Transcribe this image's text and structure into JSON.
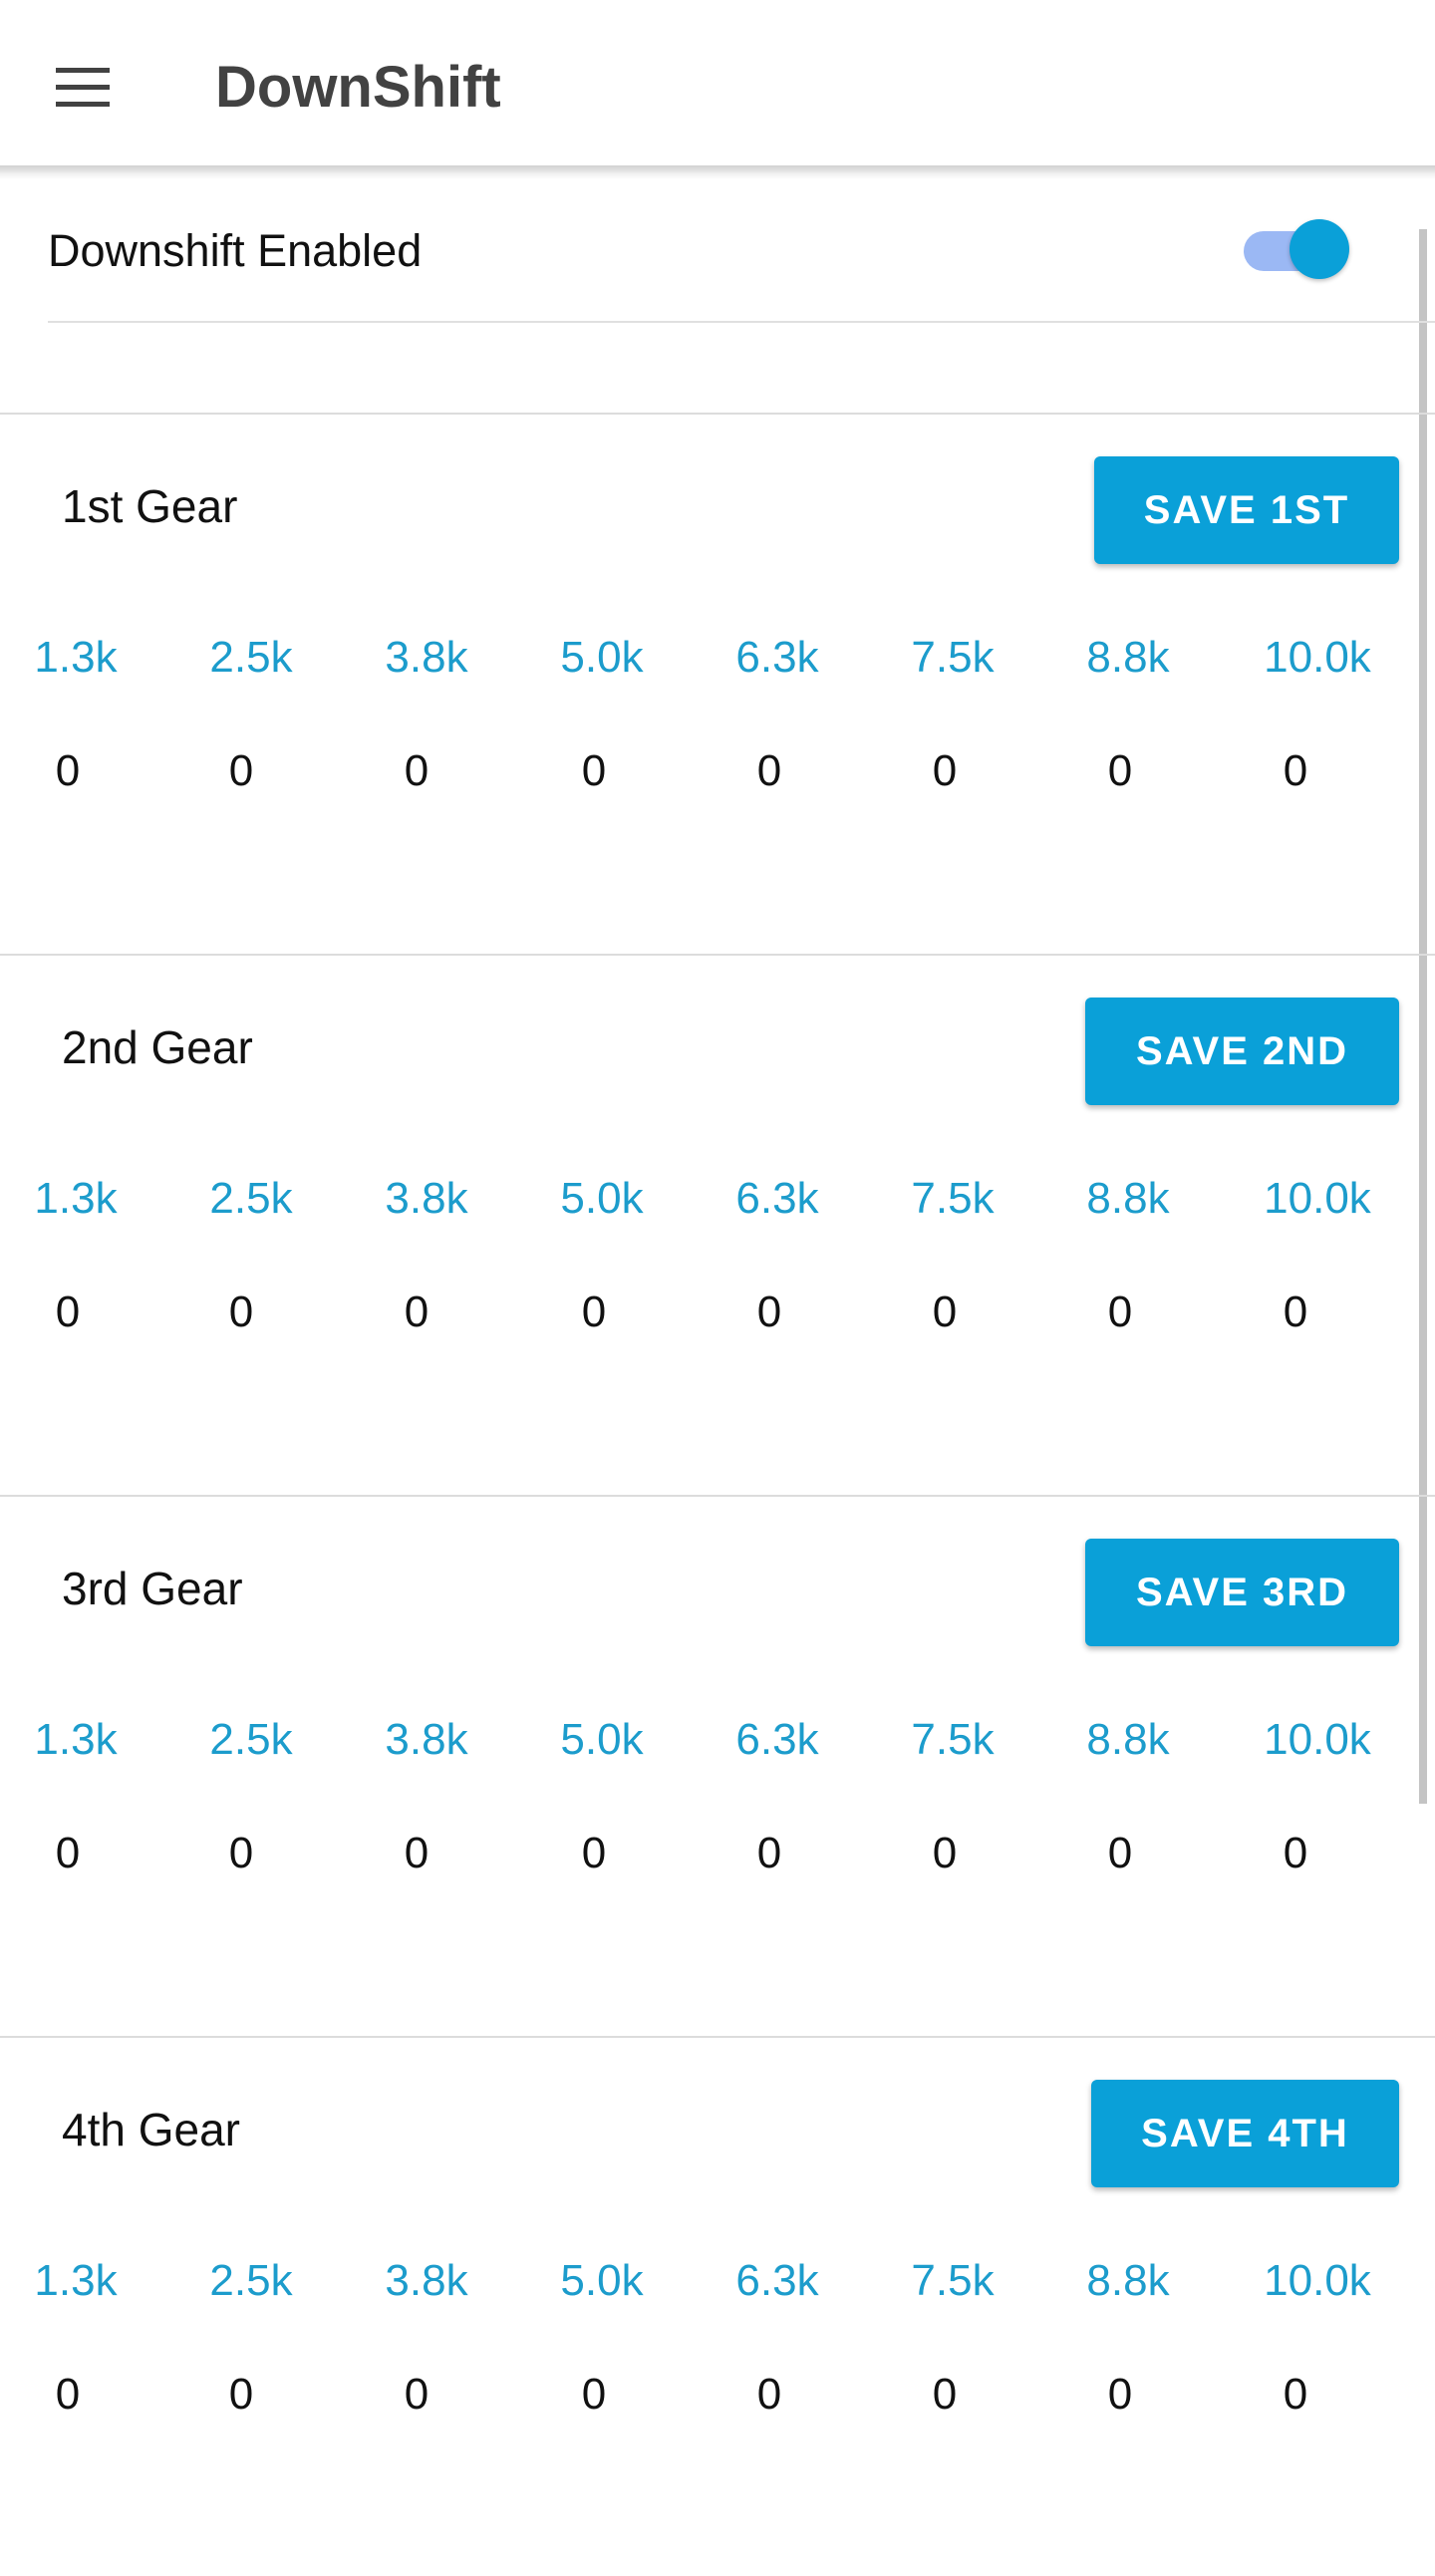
{
  "appbar": {
    "menu_icon": "hamburger-menu-icon",
    "title": "DownShift"
  },
  "settings": {
    "downshift_label": "Downshift Enabled",
    "downshift_enabled": true,
    "switch_colors": {
      "track": "#9bb8f4",
      "knob": "#0aa0d8"
    }
  },
  "colors": {
    "accent": "#0aa0d8",
    "rpm_text": "#1c9ccc",
    "app_title": "#424242"
  },
  "gears": [
    {
      "title": "1st Gear",
      "save_label": "SAVE 1ST",
      "rpms": [
        "1.3k",
        "2.5k",
        "3.8k",
        "5.0k",
        "6.3k",
        "7.5k",
        "8.8k",
        "10.0k"
      ],
      "values": [
        "0",
        "0",
        "0",
        "0",
        "0",
        "0",
        "0",
        "0"
      ]
    },
    {
      "title": "2nd Gear",
      "save_label": "SAVE 2ND",
      "rpms": [
        "1.3k",
        "2.5k",
        "3.8k",
        "5.0k",
        "6.3k",
        "7.5k",
        "8.8k",
        "10.0k"
      ],
      "values": [
        "0",
        "0",
        "0",
        "0",
        "0",
        "0",
        "0",
        "0"
      ]
    },
    {
      "title": "3rd Gear",
      "save_label": "SAVE 3RD",
      "rpms": [
        "1.3k",
        "2.5k",
        "3.8k",
        "5.0k",
        "6.3k",
        "7.5k",
        "8.8k",
        "10.0k"
      ],
      "values": [
        "0",
        "0",
        "0",
        "0",
        "0",
        "0",
        "0",
        "0"
      ]
    },
    {
      "title": "4th Gear",
      "save_label": "SAVE 4TH",
      "rpms": [
        "1.3k",
        "2.5k",
        "3.8k",
        "5.0k",
        "6.3k",
        "7.5k",
        "8.8k",
        "10.0k"
      ],
      "values": [
        "0",
        "0",
        "0",
        "0",
        "0",
        "0",
        "0",
        "0"
      ]
    }
  ]
}
